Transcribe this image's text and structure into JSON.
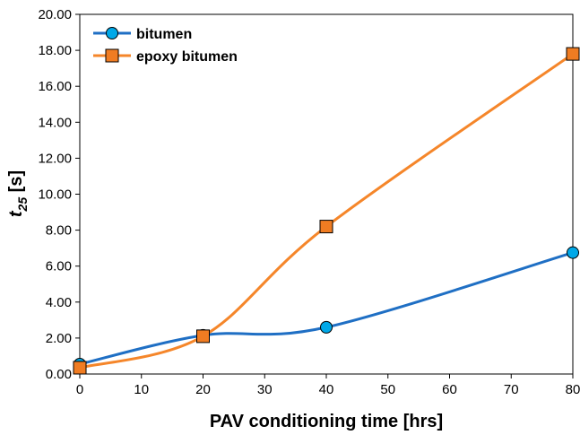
{
  "chart_data": {
    "type": "line",
    "title": "",
    "xlabel": "PAV conditioning time [hrs]",
    "ylabel_main": "t",
    "ylabel_sub": "25",
    "ylabel_unit": " [s]",
    "xlim": [
      0,
      80
    ],
    "ylim": [
      0,
      20
    ],
    "x_ticks": [
      0,
      10,
      20,
      30,
      40,
      50,
      60,
      70,
      80
    ],
    "y_ticks": [
      "0.00",
      "2.00",
      "4.00",
      "6.00",
      "8.00",
      "10.00",
      "12.00",
      "14.00",
      "16.00",
      "18.00",
      "20.00"
    ],
    "grid": false,
    "legend_position": "top-left",
    "x": [
      0,
      20,
      40,
      80
    ],
    "series": [
      {
        "name": "bitumen",
        "values": [
          0.55,
          2.15,
          2.6,
          6.75
        ],
        "color": "#1f6fc4",
        "marker": "circle",
        "marker_color": "#00a8e8"
      },
      {
        "name": "epoxy bitumen",
        "values": [
          0.35,
          2.1,
          8.2,
          17.8
        ],
        "color": "#f5862a",
        "marker": "square",
        "marker_color": "#f07c22"
      }
    ]
  }
}
